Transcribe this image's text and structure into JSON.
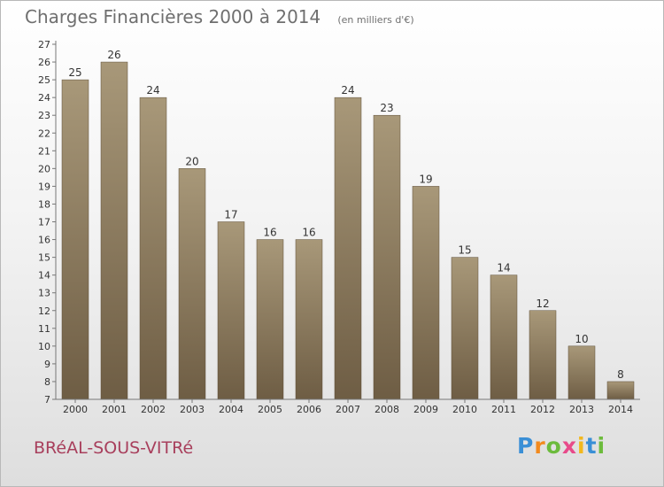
{
  "chart_data": {
    "type": "bar",
    "title": "Charges Financières 2000 à 2014",
    "subtitle": "(en milliers d'€)",
    "categories": [
      "2000",
      "2001",
      "2002",
      "2003",
      "2004",
      "2005",
      "2006",
      "2007",
      "2008",
      "2009",
      "2010",
      "2011",
      "2012",
      "2013",
      "2014"
    ],
    "values": [
      25,
      26,
      24,
      20,
      17,
      16,
      16,
      24,
      23,
      19,
      15,
      14,
      12,
      10,
      8
    ],
    "xlabel": "",
    "ylabel": "",
    "ylim": [
      7,
      27
    ],
    "yticks": [
      7,
      8,
      9,
      10,
      11,
      12,
      13,
      14,
      15,
      16,
      17,
      18,
      19,
      20,
      21,
      22,
      23,
      24,
      25,
      26,
      27
    ],
    "grid": false,
    "colors": {
      "bar_top": "#a89879",
      "bar_bottom": "#6e5d44",
      "axis": "#777777",
      "text": "#333333"
    }
  },
  "footer": {
    "commune": "BRéAL-SOUS-VITRé",
    "logo_letters": [
      "P",
      "r",
      "o",
      "x",
      "i",
      "t",
      "i"
    ],
    "logo_colors": [
      "#3a8fd6",
      "#f28a1e",
      "#6cbb3c",
      "#e84a8a",
      "#f2b81e",
      "#3a8fd6",
      "#6cbb3c"
    ]
  }
}
